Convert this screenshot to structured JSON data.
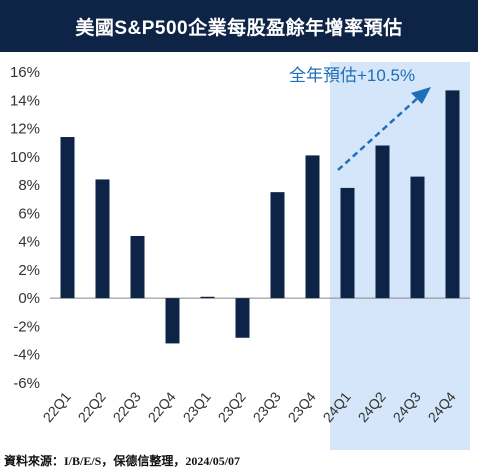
{
  "title": "美國S&P500企業每股盈餘年增率預估",
  "source": "資料來源：I/B/E/S，保德信整理，2024/05/07",
  "colors": {
    "title_bg": "#0d2447",
    "bar": "#0d2447",
    "highlight_bg": "#d5e6fa",
    "annotation": "#1f6fb8",
    "baseline": "#888888"
  },
  "chart_data": {
    "type": "bar",
    "categories": [
      "22Q1",
      "22Q2",
      "22Q3",
      "22Q4",
      "23Q1",
      "23Q2",
      "23Q3",
      "23Q4",
      "24Q1",
      "24Q2",
      "24Q3",
      "24Q4"
    ],
    "values": [
      11.4,
      8.4,
      4.4,
      -3.2,
      0.1,
      -2.8,
      7.5,
      10.1,
      7.8,
      10.8,
      8.6,
      14.7
    ],
    "ylim": [
      -6,
      16
    ],
    "yticks": [
      -6,
      -4,
      -2,
      0,
      2,
      4,
      6,
      8,
      10,
      12,
      14,
      16
    ],
    "ytick_labels": [
      "-6%",
      "-4%",
      "-2%",
      "0%",
      "2%",
      "4%",
      "6%",
      "8%",
      "10%",
      "12%",
      "14%",
      "16%"
    ],
    "highlight_categories": [
      "24Q1",
      "24Q2",
      "24Q3",
      "24Q4"
    ],
    "annotation": "全年預估+10.5%",
    "title": "美國S&P500企業每股盈餘年增率預估",
    "xlabel": "",
    "ylabel": "",
    "grid": false
  }
}
